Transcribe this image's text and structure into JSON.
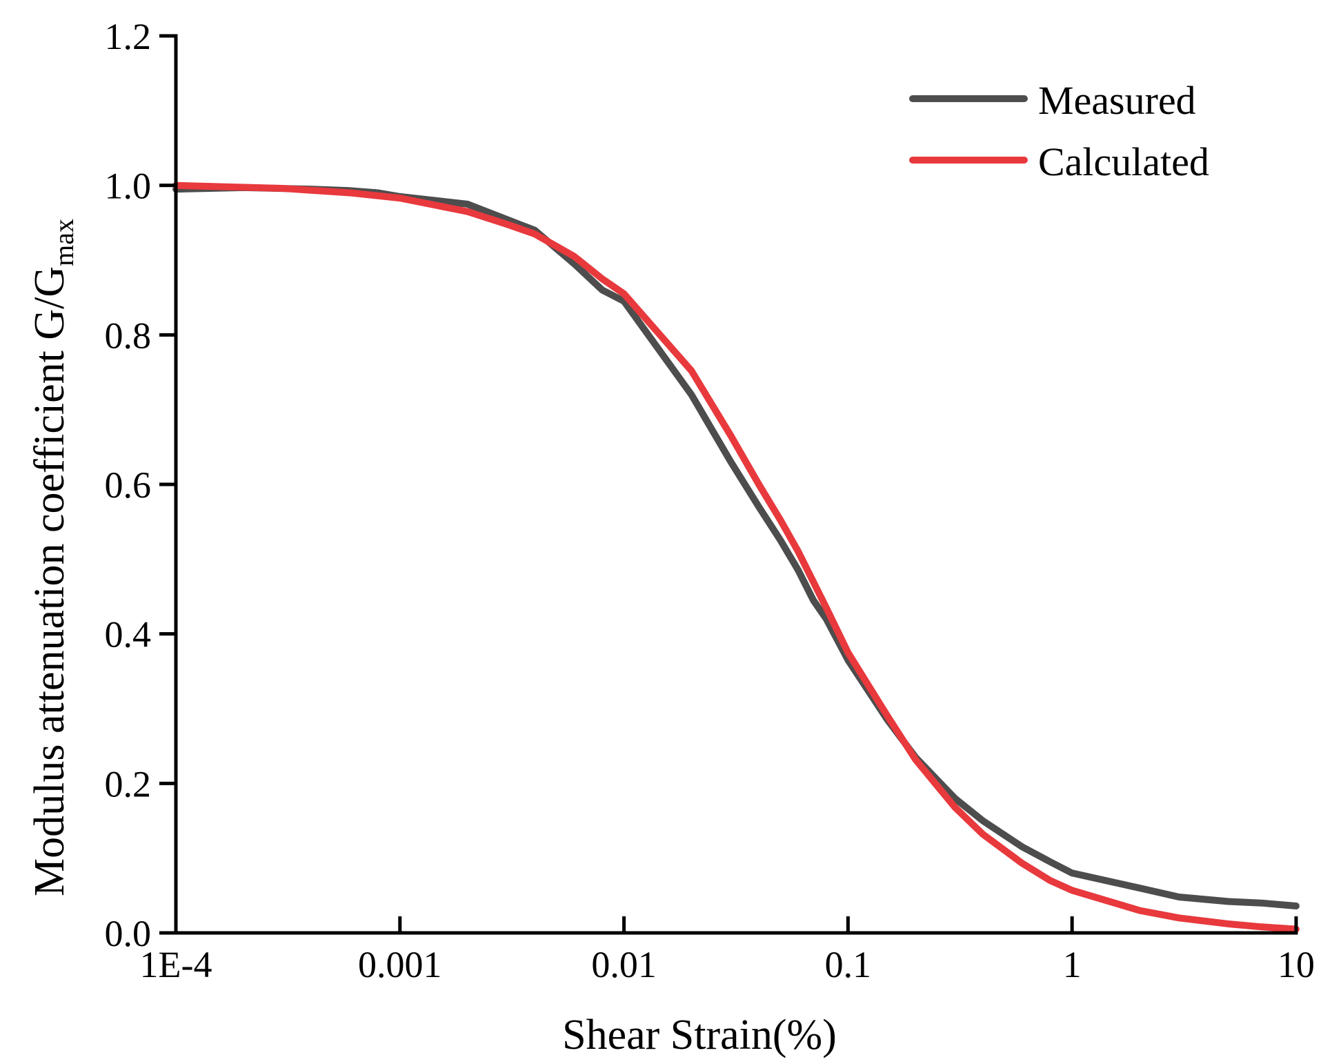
{
  "chart_data": {
    "type": "line",
    "title": "",
    "xlabel": "Shear Strain(%)",
    "ylabel": {
      "main": "Modulus attenuation coefficient G/G",
      "subscript": "max"
    },
    "x_scale": "log",
    "xlim": [
      0.0001,
      10
    ],
    "ylim": [
      0,
      1.2
    ],
    "x_ticks": [
      {
        "value": 0.0001,
        "label": "1E-4"
      },
      {
        "value": 0.001,
        "label": "0.001"
      },
      {
        "value": 0.01,
        "label": "0.01"
      },
      {
        "value": 0.1,
        "label": "0.1"
      },
      {
        "value": 1,
        "label": "1"
      },
      {
        "value": 10,
        "label": "10"
      }
    ],
    "y_ticks": [
      {
        "value": 0.0,
        "label": "0.0"
      },
      {
        "value": 0.2,
        "label": "0.2"
      },
      {
        "value": 0.4,
        "label": "0.4"
      },
      {
        "value": 0.6,
        "label": "0.6"
      },
      {
        "value": 0.8,
        "label": "0.8"
      },
      {
        "value": 1.0,
        "label": "1.0"
      },
      {
        "value": 1.2,
        "label": "1.2"
      }
    ],
    "grid": false,
    "legend_position": "top-right",
    "series": [
      {
        "name": "Measured",
        "color": "#4d4d4d",
        "x": [
          0.0001,
          0.0002,
          0.0004,
          0.0006,
          0.0008,
          0.001,
          0.002,
          0.004,
          0.006,
          0.008,
          0.01,
          0.02,
          0.03,
          0.04,
          0.05,
          0.06,
          0.07,
          0.08,
          0.1,
          0.15,
          0.2,
          0.3,
          0.4,
          0.6,
          0.8,
          1,
          2,
          3,
          5,
          7,
          10
        ],
        "y": [
          0.995,
          0.997,
          0.995,
          0.993,
          0.99,
          0.985,
          0.975,
          0.94,
          0.895,
          0.86,
          0.845,
          0.72,
          0.63,
          0.57,
          0.525,
          0.485,
          0.445,
          0.42,
          0.365,
          0.285,
          0.235,
          0.18,
          0.15,
          0.115,
          0.095,
          0.08,
          0.06,
          0.048,
          0.042,
          0.04,
          0.036
        ]
      },
      {
        "name": "Calculated",
        "color": "#e8393d",
        "x": [
          0.0001,
          0.0003,
          0.0006,
          0.001,
          0.002,
          0.003,
          0.004,
          0.006,
          0.008,
          0.01,
          0.02,
          0.03,
          0.04,
          0.05,
          0.06,
          0.08,
          0.1,
          0.15,
          0.2,
          0.3,
          0.4,
          0.6,
          0.8,
          1,
          2,
          3,
          5,
          7,
          10
        ],
        "y": [
          1.0,
          0.996,
          0.99,
          0.983,
          0.965,
          0.948,
          0.935,
          0.905,
          0.875,
          0.855,
          0.752,
          0.665,
          0.6,
          0.552,
          0.51,
          0.435,
          0.375,
          0.29,
          0.232,
          0.168,
          0.132,
          0.093,
          0.07,
          0.057,
          0.03,
          0.02,
          0.012,
          0.008,
          0.005
        ]
      }
    ]
  }
}
